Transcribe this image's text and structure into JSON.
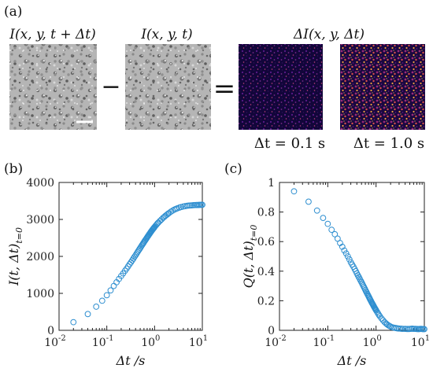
{
  "panel_a": {
    "label": "(a)",
    "frame1_caption": "I(x, y, t + Δt)",
    "frame2_caption": "I(x, y, t)",
    "diff_caption": "ΔI(x, y, Δt)",
    "minus": "−",
    "equals": "=",
    "diff1_caption": "Δt = 0.1 s",
    "diff2_caption": "Δt = 1.0 s"
  },
  "chart_data": [
    {
      "panel_label": "(b)",
      "type": "scatter",
      "xscale": "log",
      "xlim": [
        0.01,
        10
      ],
      "ylim": [
        0,
        4000
      ],
      "xlabel": "Δt /s",
      "ylabel": "I(t, Δt)_{t=0}",
      "xticks": [
        "10^-2",
        "10^-1",
        "10^0",
        "10^1"
      ],
      "yticks": [
        "0",
        "1000",
        "2000",
        "3000",
        "4000"
      ],
      "marker_color": "#2f8fd0",
      "series": [
        {
          "x": [
            0.02,
            0.04,
            0.06,
            0.08,
            0.1,
            0.12,
            0.14,
            0.16,
            0.18,
            0.2,
            0.22,
            0.24,
            0.26,
            0.28,
            0.3,
            0.32,
            0.34,
            0.36,
            0.38,
            0.4,
            0.42,
            0.44,
            0.46,
            0.48,
            0.5,
            0.52,
            0.54,
            0.56,
            0.58,
            0.6,
            0.62,
            0.64,
            0.66,
            0.68,
            0.7,
            0.72,
            0.74,
            0.76,
            0.78,
            0.8,
            0.82,
            0.84,
            0.86,
            0.88,
            0.9,
            0.92,
            0.94,
            0.96,
            0.98,
            1.0,
            1.05,
            1.1,
            1.15,
            1.2,
            1.3,
            1.4,
            1.5,
            1.6,
            1.7,
            1.8,
            1.9,
            2.0,
            2.2,
            2.4,
            2.6,
            2.8,
            3.0,
            3.3,
            3.6,
            4.0,
            4.4,
            4.8,
            5.2,
            5.6,
            6.0,
            6.5,
            7.0,
            7.5,
            8.0,
            8.5,
            9.0,
            9.5,
            10.0
          ],
          "y": [
            220,
            440,
            640,
            800,
            950,
            1080,
            1200,
            1300,
            1390,
            1470,
            1540,
            1610,
            1670,
            1730,
            1790,
            1840,
            1890,
            1940,
            1990,
            2030,
            2075,
            2115,
            2155,
            2190,
            2225,
            2260,
            2295,
            2325,
            2355,
            2385,
            2415,
            2440,
            2465,
            2490,
            2515,
            2540,
            2560,
            2585,
            2605,
            2625,
            2645,
            2665,
            2685,
            2700,
            2720,
            2735,
            2750,
            2765,
            2780,
            2795,
            2830,
            2860,
            2890,
            2915,
            2960,
            3000,
            3040,
            3070,
            3100,
            3125,
            3150,
            3170,
            3210,
            3240,
            3265,
            3285,
            3300,
            3320,
            3335,
            3350,
            3360,
            3370,
            3375,
            3378,
            3380,
            3385,
            3388,
            3390,
            3390,
            3392,
            3393,
            3395,
            3397
          ]
        }
      ]
    },
    {
      "panel_label": "(c)",
      "type": "scatter",
      "xscale": "log",
      "xlim": [
        0.01,
        10
      ],
      "ylim": [
        0,
        1
      ],
      "xlabel": "Δt /s",
      "ylabel": "Q(t, Δt)_{t=0}",
      "xticks": [
        "10^-2",
        "10^-1",
        "10^0",
        "10^1"
      ],
      "yticks": [
        "0",
        "0.2",
        "0.4",
        "0.6",
        "0.8",
        "1"
      ],
      "marker_color": "#2f8fd0",
      "series": [
        {
          "x": [
            0.02,
            0.04,
            0.06,
            0.08,
            0.1,
            0.12,
            0.14,
            0.16,
            0.18,
            0.2,
            0.22,
            0.24,
            0.26,
            0.28,
            0.3,
            0.32,
            0.34,
            0.36,
            0.38,
            0.4,
            0.42,
            0.44,
            0.46,
            0.48,
            0.5,
            0.52,
            0.54,
            0.56,
            0.58,
            0.6,
            0.62,
            0.64,
            0.66,
            0.68,
            0.7,
            0.72,
            0.74,
            0.76,
            0.78,
            0.8,
            0.82,
            0.84,
            0.86,
            0.88,
            0.9,
            0.92,
            0.94,
            0.96,
            0.98,
            1.0,
            1.05,
            1.1,
            1.15,
            1.2,
            1.3,
            1.4,
            1.5,
            1.6,
            1.7,
            1.8,
            1.9,
            2.0,
            2.2,
            2.4,
            2.6,
            2.8,
            3.0,
            3.3,
            3.6,
            4.0,
            4.4,
            4.8,
            5.2,
            5.6,
            6.0,
            6.5,
            7.0,
            7.5,
            8.0,
            8.5,
            9.0,
            9.5,
            10.0
          ],
          "y": [
            0.94,
            0.87,
            0.81,
            0.76,
            0.72,
            0.68,
            0.65,
            0.62,
            0.59,
            0.565,
            0.54,
            0.52,
            0.5,
            0.48,
            0.46,
            0.445,
            0.43,
            0.415,
            0.4,
            0.385,
            0.372,
            0.36,
            0.348,
            0.336,
            0.325,
            0.314,
            0.303,
            0.293,
            0.283,
            0.273,
            0.264,
            0.255,
            0.246,
            0.238,
            0.23,
            0.222,
            0.214,
            0.207,
            0.2,
            0.193,
            0.186,
            0.18,
            0.174,
            0.168,
            0.162,
            0.156,
            0.151,
            0.146,
            0.141,
            0.136,
            0.125,
            0.114,
            0.104,
            0.095,
            0.08,
            0.067,
            0.056,
            0.047,
            0.04,
            0.034,
            0.029,
            0.025,
            0.02,
            0.017,
            0.015,
            0.013,
            0.012,
            0.011,
            0.01,
            0.01,
            0.009,
            0.009,
            0.01,
            0.011,
            0.01,
            0.01,
            0.009,
            0.008,
            0.009,
            0.01,
            0.009,
            0.008,
            0.008
          ]
        }
      ]
    }
  ]
}
